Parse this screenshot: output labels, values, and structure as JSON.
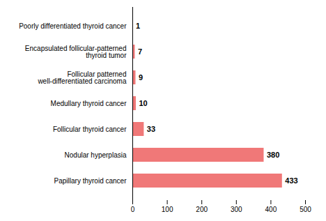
{
  "chart_data": {
    "type": "bar",
    "orientation": "horizontal",
    "categories": [
      "Papillary thyroid cancer",
      "Nodular hyperplasia",
      "Follicular thyroid cancer",
      "Medullary thyroid cancer",
      "Follicular patterned\nwell-differentiated carcinoma",
      "Encapsulated follicular-patterned\nthyroid tumor",
      "Poorly differentiated thyroid cancer"
    ],
    "values": [
      433,
      380,
      33,
      10,
      9,
      7,
      1
    ],
    "color": "#f07878",
    "xlim": [
      0,
      500
    ],
    "xticks": [
      0,
      100,
      200,
      300,
      400,
      500
    ],
    "data_labels": true,
    "grid": false
  }
}
